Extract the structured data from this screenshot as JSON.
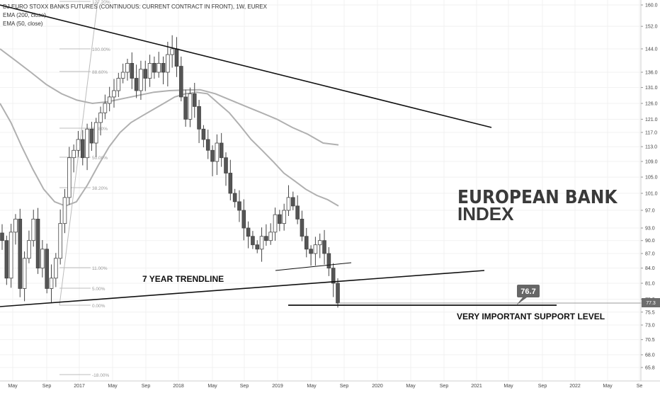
{
  "header": {
    "symbol_line": "DJ EURO STOXX BANKS FUTURES (CONTINUOUS: CURRENT CONTRACT IN FRONT), 1W, EUREX",
    "ema200_label": "EMA (200, close)",
    "ema50_label": "EMA (50, close)"
  },
  "annotations": {
    "title_line1": "EUROPEAN BANK",
    "title_line2": "INDEX",
    "trendline_label": "7 YEAR TRENDLINE",
    "support_label": "VERY IMPORTANT SUPPORT LEVEL",
    "callout_value": "76.7",
    "last_price_label": "77.3"
  },
  "colors": {
    "candle_up": "#ffffff",
    "candle_down": "#555555",
    "candle_outline": "#444444",
    "ema": "#b0b0b0",
    "trendline": "#111111",
    "fib": "#bcbcbc",
    "callout_bg": "#666666",
    "grid": "#f1f1f1"
  },
  "chart_data": {
    "type": "candlestick",
    "title": "",
    "x_labels": [
      "May",
      "Sep",
      "2017",
      "May",
      "Sep",
      "2018",
      "May",
      "Sep",
      "2019",
      "May",
      "Sep",
      "2020",
      "May",
      "Sep",
      "2021",
      "May",
      "Sep",
      "2022",
      "May",
      "Se"
    ],
    "y_ticks": [
      "160.0",
      "152.0",
      "144.0",
      "136.0",
      "131.0",
      "126.0",
      "121.0",
      "117.0",
      "113.0",
      "109.0",
      "105.0",
      "101.0",
      "97.0",
      "93.0",
      "90.0",
      "87.0",
      "84.0",
      "81.0",
      "78.0",
      "75.5",
      "73.0",
      "70.5",
      "68.0",
      "65.8"
    ],
    "y_scale": "log",
    "ylim": [
      65,
      161
    ],
    "fib_levels": [
      "127.20%",
      "100.00%",
      "88.60%",
      "61.80%",
      "50.00%",
      "38.20%",
      "11.00%",
      "5.00%",
      "0.00%",
      "-18.00%"
    ],
    "close_series": [
      90,
      82,
      92,
      95,
      80,
      86,
      90,
      95,
      84,
      88,
      80,
      82,
      86,
      94,
      100,
      110,
      112,
      115,
      110,
      118,
      114,
      120,
      123,
      126,
      128,
      130,
      134,
      136,
      139,
      134,
      130,
      137,
      134,
      139,
      136,
      139,
      136,
      142,
      144,
      138,
      128,
      121,
      129,
      125,
      118,
      115,
      112,
      109,
      114,
      110,
      106,
      101,
      99,
      97,
      93,
      91,
      89,
      88,
      91,
      90,
      92,
      96,
      94,
      97,
      100,
      98,
      95,
      91,
      88,
      87,
      89,
      90,
      87,
      84,
      81,
      77.3
    ],
    "ema50_series": [
      126,
      120,
      113,
      107,
      102,
      99,
      98,
      99,
      103,
      108,
      113,
      117,
      120,
      122,
      124,
      126,
      128,
      129,
      129.5,
      129,
      126,
      123,
      119,
      115,
      112,
      109,
      106,
      104,
      102,
      100.5,
      99.5,
      98
    ],
    "ema200_series": [
      144,
      140,
      136,
      132,
      129,
      127,
      126,
      126.5,
      127.5,
      128.5,
      129.5,
      130,
      130.2,
      130.3,
      129,
      127,
      125,
      123,
      121,
      118.5,
      116.5,
      114,
      113.5
    ],
    "annotation_prices": {
      "support": 77.3,
      "callout": 76.7
    }
  }
}
